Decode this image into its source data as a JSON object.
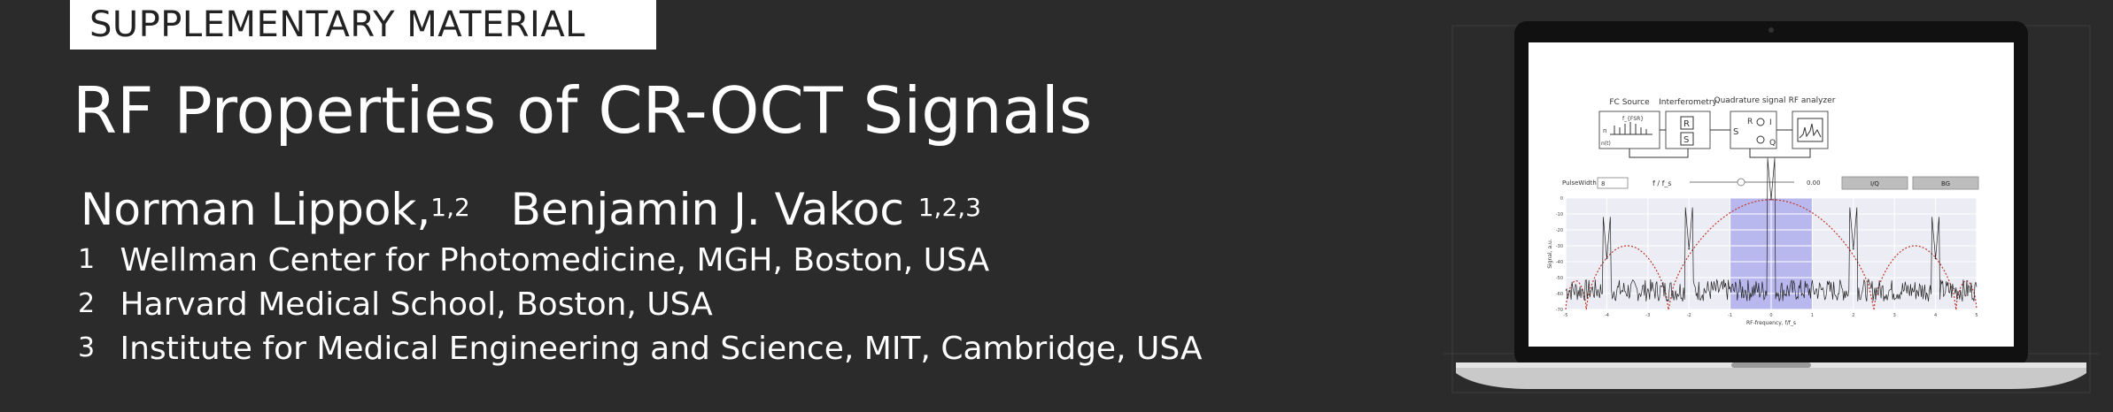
{
  "header": {
    "tag": "SUPPLEMENTARY MATERIAL",
    "title": "RF Properties of CR-OCT Signals",
    "authors": [
      {
        "name": "Norman Lippok,",
        "sup": "1,2"
      },
      {
        "name": "Benjamin J. Vakoc",
        "sup": "1,2,3"
      }
    ],
    "affiliations": [
      {
        "num": "1",
        "text": "Wellman Center for Photomedicine, MGH, Boston, USA"
      },
      {
        "num": "2",
        "text": "Harvard Medical School, Boston, USA"
      },
      {
        "num": "3",
        "text": "Institute for Medical Engineering and Science, MIT, Cambridge, USA"
      }
    ]
  },
  "screen": {
    "diagram": {
      "blocks": [
        "FC Source",
        "Interferometry",
        "Quadrature signal",
        "RF analyzer"
      ],
      "fc_label": "f_{FSR}",
      "n_label": "n",
      "nt_label": "n(t)",
      "r_label": "R",
      "s_label": "S",
      "i_label": "I",
      "q_label": "Q",
      "s_in_label": "S"
    },
    "controls": {
      "pulsewidth_label": "PulseWidth",
      "pulsewidth_value": "8",
      "ratio_label": "f / f_s",
      "slider_value": "0.00",
      "btn_iq": "I/Q",
      "btn_bg": "BG"
    },
    "colors": {
      "accent": "#7b7be8",
      "envelope": "#c0392b",
      "trace": "#222222"
    }
  },
  "chart_data": {
    "type": "line",
    "title": "",
    "xlabel": "RF-frequency, f/f_s",
    "ylabel": "Signal, a.u.",
    "xlim": [
      -5,
      5
    ],
    "ylim": [
      -70,
      0
    ],
    "x_ticks": [
      "-5",
      "-4",
      "-3",
      "-2",
      "-1",
      "0",
      "1",
      "2",
      "3",
      "4",
      "5"
    ],
    "y_ticks": [
      "0",
      "-10",
      "-20",
      "-30",
      "-40",
      "-50",
      "-60",
      "-70"
    ],
    "highlight_band": [
      -1,
      1
    ],
    "peaks": [
      {
        "x": -4,
        "y": -38
      },
      {
        "x": -2,
        "y": -32
      },
      {
        "x": 0,
        "y": -1
      },
      {
        "x": 2,
        "y": -32
      },
      {
        "x": 4,
        "y": -38
      }
    ],
    "noise_floor": -58,
    "envelope_zeros": [
      -4.5,
      -2.5,
      2.5,
      4.5
    ],
    "grid": true
  }
}
